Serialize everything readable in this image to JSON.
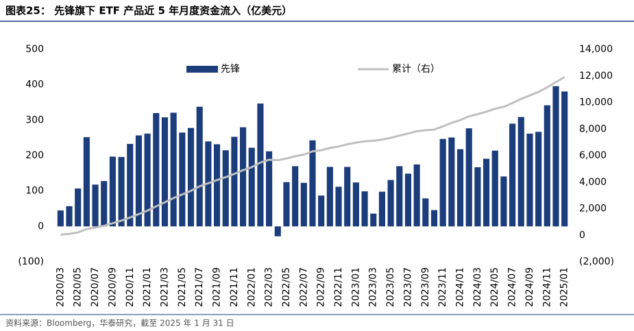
{
  "chart_data": {
    "type": "bar-line",
    "title": "图表25：  先锋旗下 ETF 产品近 5 年月度资金流入（亿美元）",
    "source": "资料来源：Bloomberg，华泰研究，截至 2025 年 1 月 31 日",
    "categories": [
      "2020/03",
      null,
      "2020/05",
      null,
      "2020/07",
      null,
      "2020/09",
      null,
      "2020/11",
      null,
      "2021/01",
      null,
      "2021/03",
      null,
      "2021/05",
      null,
      "2021/07",
      null,
      "2021/09",
      null,
      "2021/11",
      null,
      "2022/01",
      null,
      "2022/03",
      null,
      "2022/05",
      null,
      "2022/07",
      null,
      "2022/09",
      null,
      "2022/11",
      null,
      "2023/01",
      null,
      "2023/03",
      null,
      "2023/05",
      null,
      "2023/07",
      null,
      "2023/09",
      null,
      "2023/11",
      null,
      "2024/01",
      null,
      "2024/03",
      null,
      "2024/05",
      null,
      "2024/07",
      null,
      "2024/09",
      null,
      "2024/11",
      null,
      "2025/01"
    ],
    "series": [
      {
        "name": "先锋",
        "color": "#1c3d7c",
        "kind": "bar",
        "values": [
          45,
          57,
          107,
          252,
          118,
          128,
          197,
          196,
          233,
          257,
          262,
          320,
          308,
          321,
          265,
          278,
          338,
          240,
          232,
          215,
          253,
          280,
          222,
          347,
          212,
          -28,
          125,
          170,
          123,
          243,
          87,
          168,
          112,
          168,
          124,
          99,
          36,
          98,
          131,
          170,
          149,
          175,
          79,
          46,
          247,
          251,
          218,
          277,
          167,
          191,
          214,
          141,
          290,
          309,
          262,
          267,
          342,
          396,
          381
        ]
      },
      {
        "name": "累计（右）",
        "color": "#bfbfbf",
        "kind": "line",
        "axis": "y2",
        "values": [
          45,
          102,
          209,
          461,
          579,
          707,
          904,
          1100,
          1333,
          1590,
          1852,
          2172,
          2480,
          2801,
          3066,
          3344,
          3682,
          3922,
          4154,
          4369,
          4622,
          4902,
          5124,
          5471,
          5683,
          5655,
          5780,
          5950,
          6073,
          6316,
          6403,
          6571,
          6683,
          6851,
          6975,
          7074,
          7110,
          7208,
          7339,
          7509,
          7658,
          7833,
          7912,
          7958,
          8205,
          8456,
          8674,
          8951,
          9118,
          9309,
          9523,
          9664,
          9954,
          10263,
          10525,
          10792,
          11134,
          11530,
          11911
        ]
      }
    ],
    "ylim": [
      -100,
      500
    ],
    "yticks": [
      {
        "value": -100,
        "label": "(100)"
      },
      0,
      100,
      200,
      300,
      400,
      500
    ],
    "y2lim": [
      -2000,
      14000
    ],
    "y2ticks": [
      {
        "value": -2000,
        "label": "(2,000)"
      },
      0,
      {
        "value": 2000,
        "label": "2,000"
      },
      {
        "value": 4000,
        "label": "4,000"
      },
      {
        "value": 6000,
        "label": "6,000"
      },
      {
        "value": 8000,
        "label": "8,000"
      },
      {
        "value": 10000,
        "label": "10,000"
      },
      {
        "value": 12000,
        "label": "12,000"
      },
      {
        "value": 14000,
        "label": "14,000"
      }
    ]
  }
}
